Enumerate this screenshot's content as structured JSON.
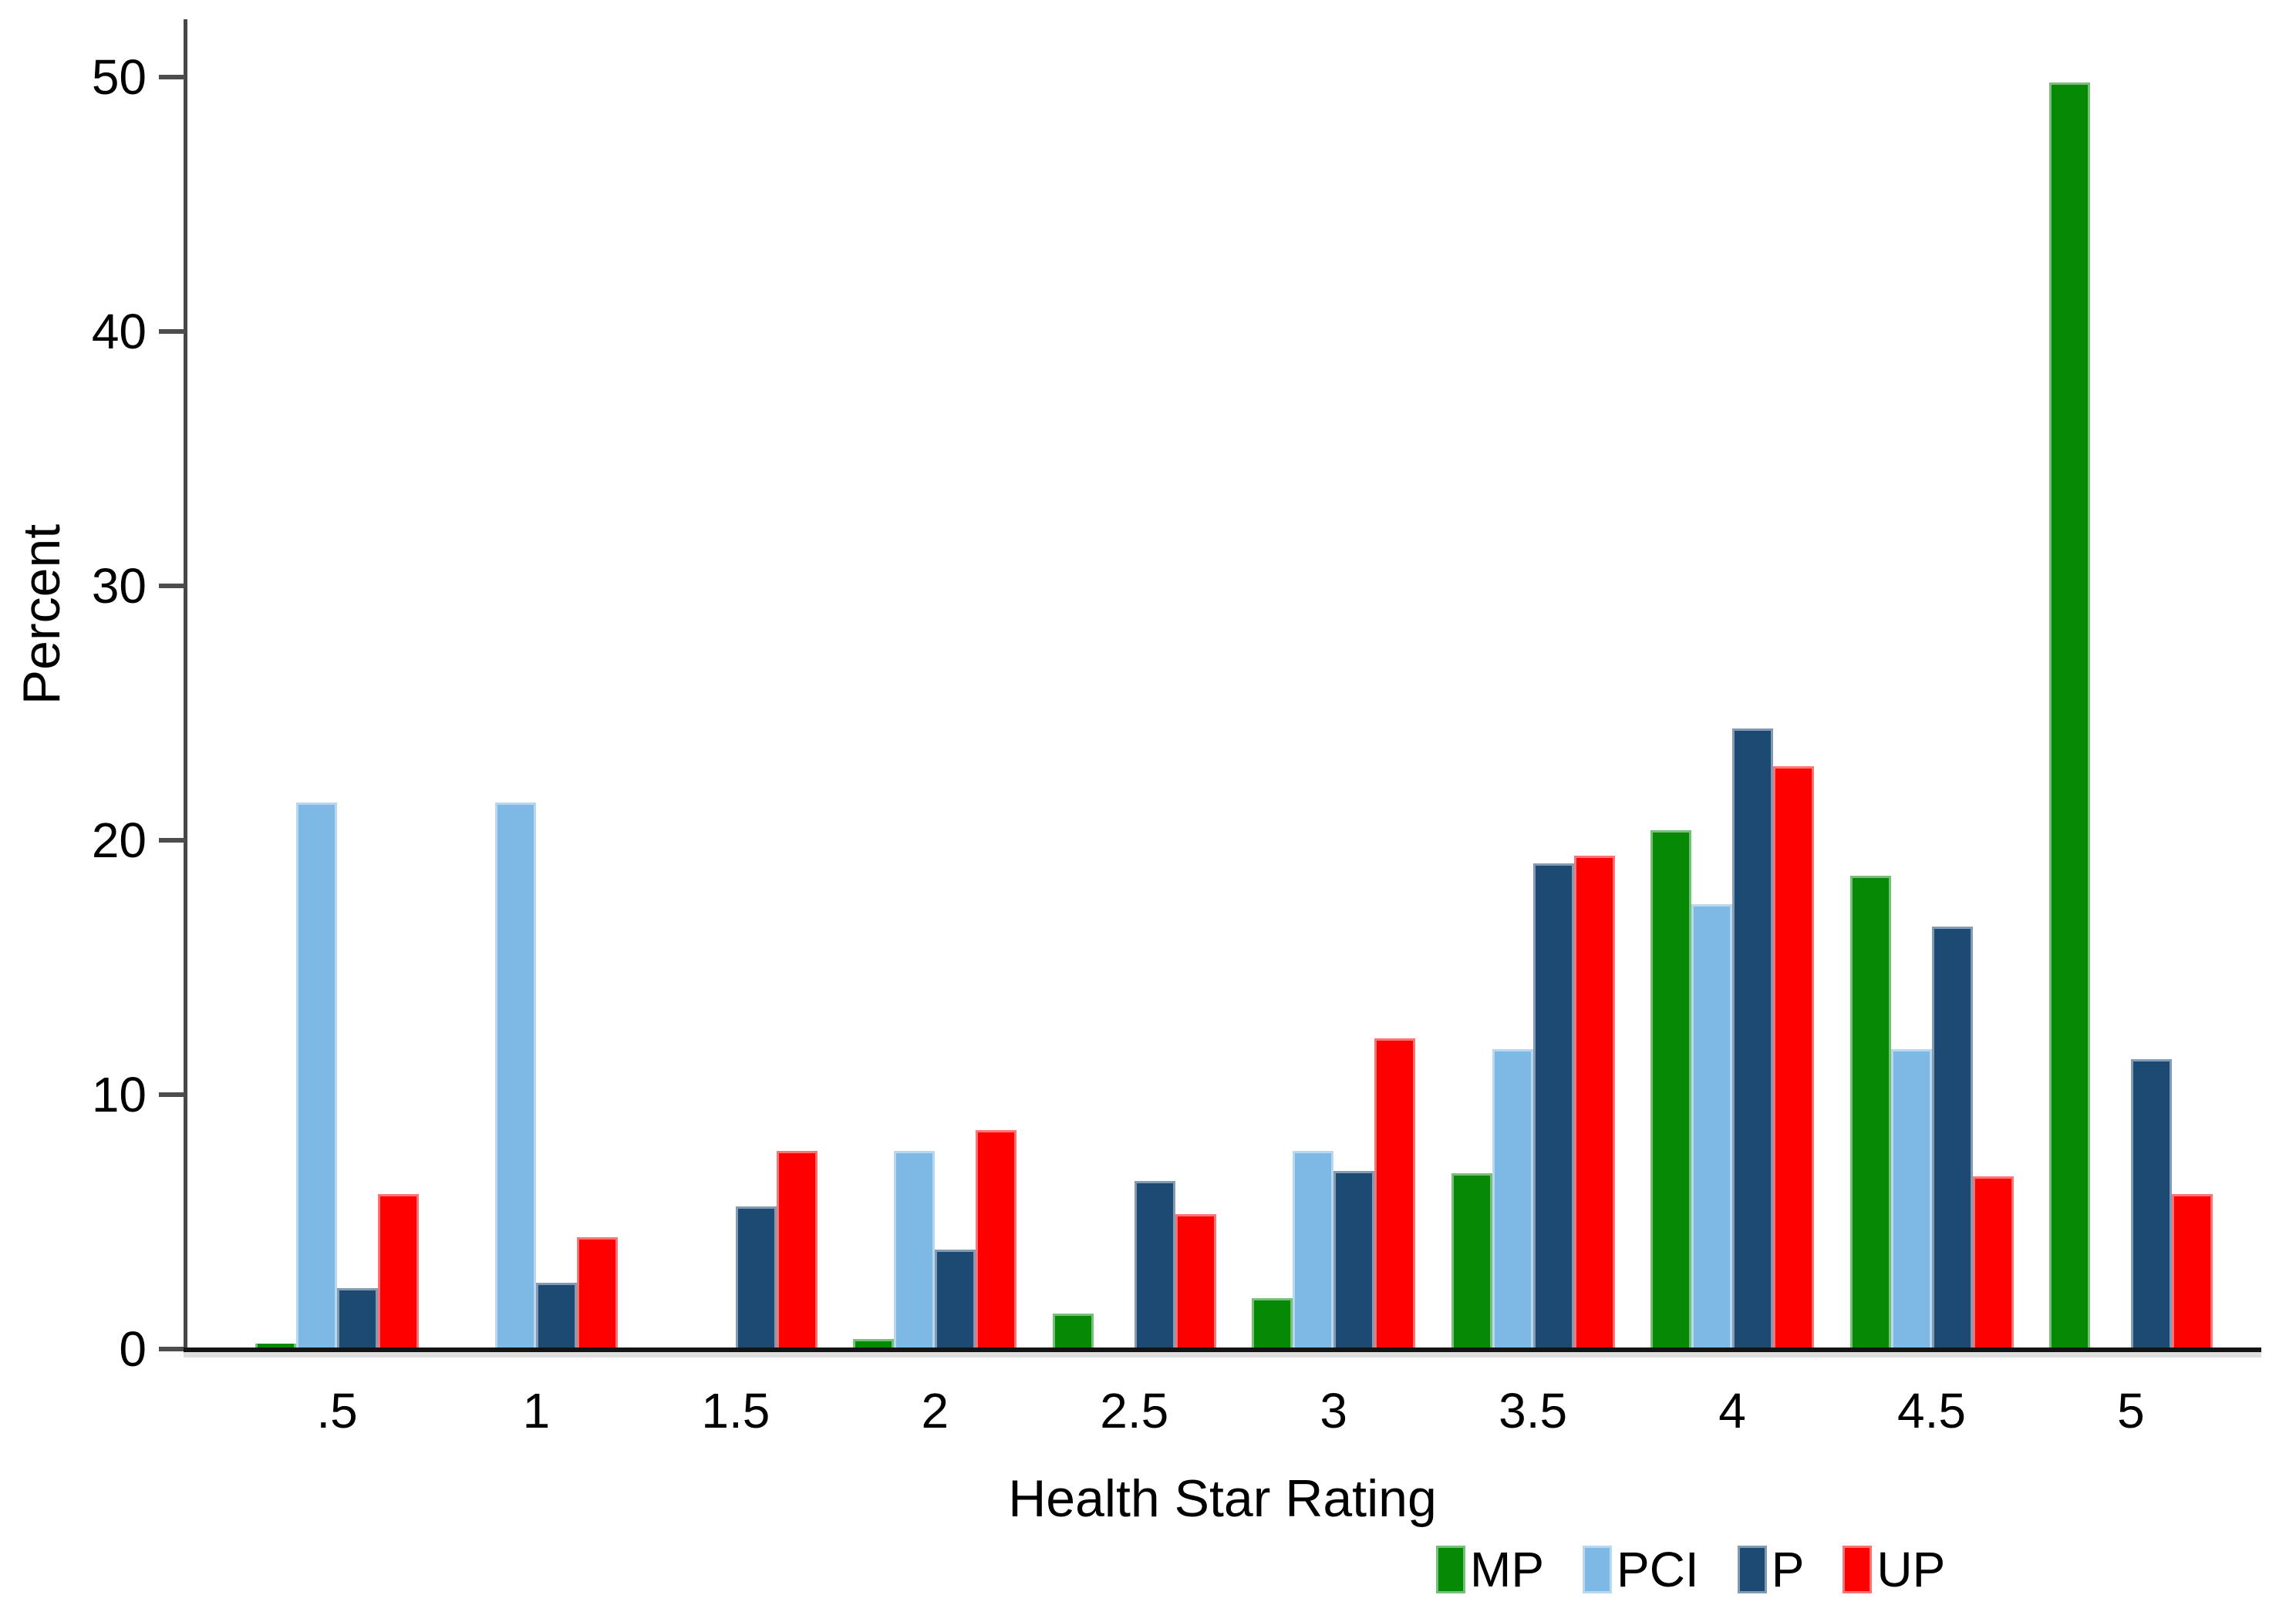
{
  "chart_data": {
    "type": "bar",
    "title": "",
    "xlabel": "Health Star Rating",
    "ylabel": "Percent",
    "categories": [
      ".5",
      "1",
      "1.5",
      "2",
      "2.5",
      "3",
      "3.5",
      "4",
      "4.5",
      "5"
    ],
    "series": [
      {
        "name": "MP",
        "color": "#068A06",
        "values": [
          0.2,
          0,
          0,
          0.4,
          1.4,
          2.0,
          6.9,
          20.4,
          18.6,
          49.8
        ]
      },
      {
        "name": "PCI",
        "color": "#7EB8E4",
        "values": [
          21.5,
          21.5,
          0,
          7.8,
          0,
          7.8,
          11.8,
          17.5,
          11.8,
          0
        ]
      },
      {
        "name": "P",
        "color": "#1C4A73",
        "values": [
          2.4,
          2.6,
          5.6,
          3.9,
          6.6,
          7.0,
          19.1,
          24.4,
          16.6,
          11.4
        ]
      },
      {
        "name": "UP",
        "color": "#FF0000",
        "values": [
          6.1,
          4.4,
          7.8,
          8.6,
          5.3,
          12.2,
          19.4,
          22.9,
          6.8,
          6.1
        ]
      }
    ],
    "yticks": [
      "0",
      "10",
      "20",
      "30",
      "40",
      "50"
    ],
    "ylim": [
      0,
      52
    ],
    "grid": false,
    "legend": [
      "MP",
      "PCI",
      "P",
      "UP"
    ],
    "legend_position": "bottom-right",
    "background_color": "#ffffff"
  }
}
